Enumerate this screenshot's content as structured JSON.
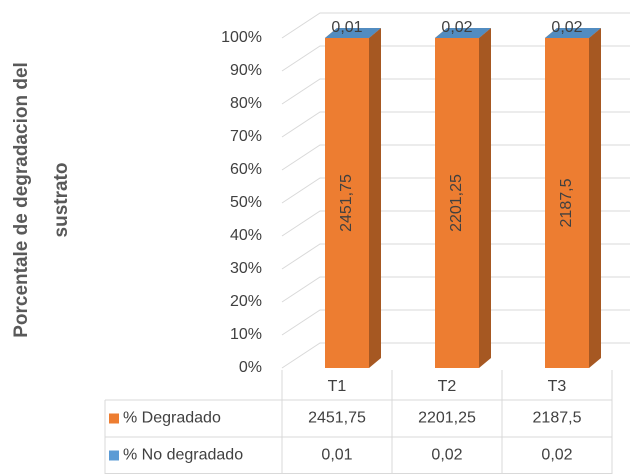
{
  "chart_data": {
    "type": "bar",
    "stacked": "percent",
    "ylabel": [
      "Porcentale de degradacion del",
      "sustrato"
    ],
    "categories": [
      "T1",
      "T2",
      "T3"
    ],
    "series": [
      {
        "name": "% Degradado",
        "color": "#ED7D31",
        "values": [
          2451.75,
          2201.25,
          2187.5
        ],
        "value_labels": [
          "2451,75",
          "2201,25",
          "2187,5"
        ]
      },
      {
        "name": "% No degradado",
        "color": "#5B9BD5",
        "values": [
          0.01,
          0.02,
          0.02
        ],
        "value_labels": [
          "0,01",
          "0,02",
          "0,02"
        ]
      }
    ],
    "ylim": [
      0,
      100
    ],
    "yticks": [
      {
        "value": 0,
        "label": "0%"
      },
      {
        "value": 10,
        "label": "10%"
      },
      {
        "value": 20,
        "label": "20%"
      },
      {
        "value": 30,
        "label": "30%"
      },
      {
        "value": 40,
        "label": "40%"
      },
      {
        "value": 50,
        "label": "50%"
      },
      {
        "value": 60,
        "label": "60%"
      },
      {
        "value": 70,
        "label": "70%"
      },
      {
        "value": 80,
        "label": "80%"
      },
      {
        "value": 90,
        "label": "90%"
      },
      {
        "value": 100,
        "label": "100%"
      }
    ],
    "grid": true,
    "data_table": true
  }
}
